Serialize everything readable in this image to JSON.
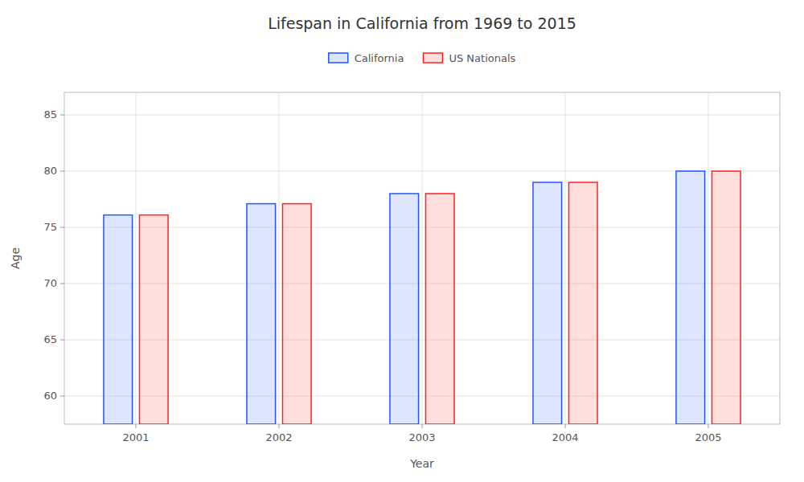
{
  "chart_data": {
    "type": "bar",
    "title": "Lifespan in California from 1969 to 2015",
    "xlabel": "Year",
    "ylabel": "Age",
    "categories": [
      "2001",
      "2002",
      "2003",
      "2004",
      "2005"
    ],
    "series": [
      {
        "name": "California",
        "color": "#2255ff",
        "values": [
          76.1,
          77.1,
          78.0,
          79.0,
          80.0
        ]
      },
      {
        "name": "US Nationals",
        "color": "#ff2222",
        "values": [
          76.1,
          77.1,
          78.0,
          79.0,
          80.0
        ]
      }
    ],
    "ylim": [
      57.5,
      87
    ],
    "yticks": [
      60,
      65,
      70,
      75,
      80,
      85
    ],
    "grid": true,
    "legend": "top"
  }
}
